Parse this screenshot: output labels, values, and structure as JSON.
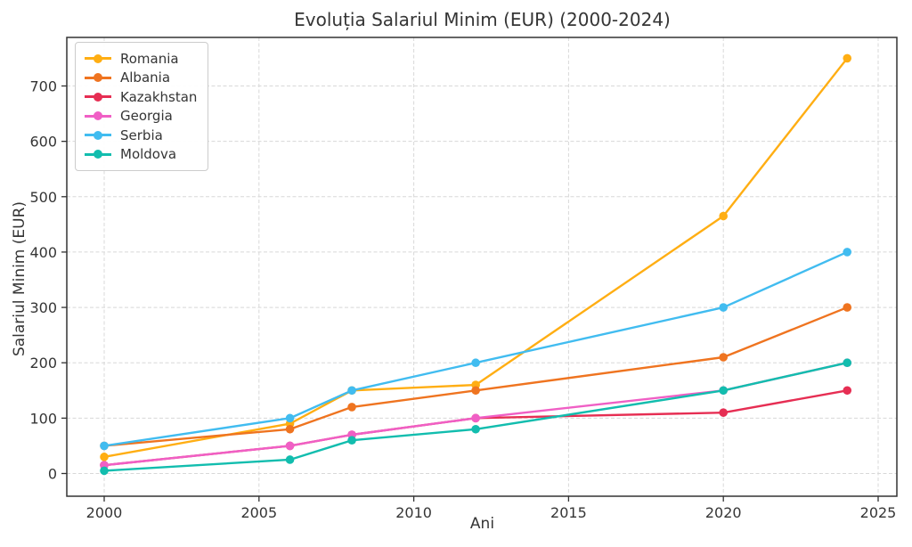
{
  "chart_data": {
    "type": "line",
    "title": "Evoluția Salariul Minim (EUR) (2000-2024)",
    "xlabel": "Ani",
    "ylabel": "Salariul Minim (EUR)",
    "x": [
      2000,
      2006,
      2008,
      2012,
      2020,
      2024
    ],
    "series": [
      {
        "name": "Romania",
        "color": "#FFAE13",
        "values": [
          30,
          90,
          150,
          160,
          465,
          750
        ]
      },
      {
        "name": "Albania",
        "color": "#EF7420",
        "values": [
          50,
          80,
          120,
          150,
          210,
          300
        ]
      },
      {
        "name": "Kazakhstan",
        "color": "#E62E53",
        "values": [
          15,
          50,
          70,
          100,
          110,
          150
        ]
      },
      {
        "name": "Georgia",
        "color": "#F05FC5",
        "values": [
          15,
          50,
          70,
          100,
          150,
          200
        ]
      },
      {
        "name": "Serbia",
        "color": "#41BCF0",
        "values": [
          50,
          100,
          150,
          200,
          300,
          400
        ]
      },
      {
        "name": "Moldova",
        "color": "#12BDAE",
        "values": [
          5,
          25,
          60,
          80,
          150,
          200
        ]
      }
    ],
    "xticks": [
      2000,
      2005,
      2010,
      2015,
      2020,
      2025
    ],
    "yticks": [
      0,
      100,
      200,
      300,
      400,
      500,
      600,
      700
    ],
    "xlim": [
      1998.8,
      2025.6
    ],
    "ylim": [
      -42,
      787
    ],
    "legend_position": "upper left",
    "grid": "dashed",
    "colors": {
      "background": "#ffffff",
      "gridline": "#d8d8d8",
      "spine": "#333333",
      "text": "#353535"
    }
  }
}
